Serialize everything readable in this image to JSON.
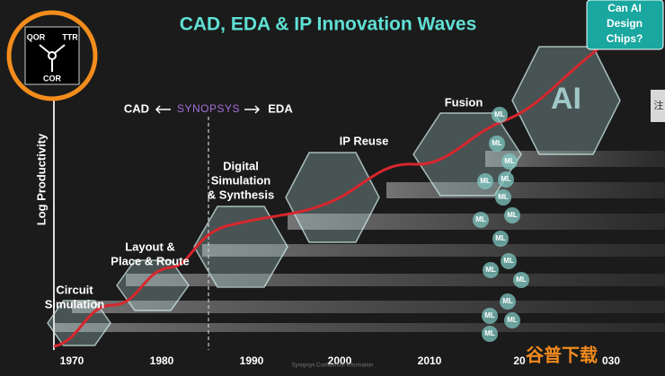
{
  "title": "CAD, EDA & IP Innovation Waves",
  "corner_box": {
    "lines": [
      "Can AI",
      "Design",
      "Chips?"
    ]
  },
  "icon": {
    "top_left": "QOR",
    "top_right": "TTR",
    "bottom": "COR"
  },
  "y_axis_label": "Log Productivity",
  "cad_eda": {
    "left": "CAD",
    "brand": "SYNOPSYS",
    "right": "EDA"
  },
  "stages": [
    {
      "lines": [
        "Circuit",
        "Simulation"
      ]
    },
    {
      "lines": [
        "Layout &",
        "Place & Route"
      ]
    },
    {
      "lines": [
        "Digital",
        "Simulation",
        "& Synthesis"
      ]
    },
    {
      "lines": [
        "IP Reuse"
      ]
    },
    {
      "lines": [
        "Fusion"
      ]
    },
    {
      "lines": [
        "AI"
      ]
    }
  ],
  "years": [
    "1970",
    "1980",
    "1990",
    "2000",
    "2010",
    "20",
    "030"
  ],
  "ml_labels": [
    "ML",
    "ML",
    "ML",
    "ML",
    "ML",
    "ML",
    "ML",
    "ML",
    "ML",
    "ML",
    "ML",
    "ML",
    "ML",
    "ML",
    "ML",
    "ML"
  ],
  "footer": "Synopsys Confidential Information",
  "watermark": "谷普下载",
  "side_tab": "注"
}
